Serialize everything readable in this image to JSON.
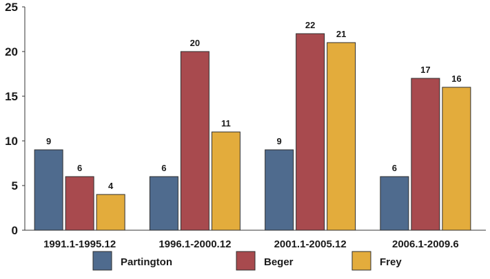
{
  "chart_data": {
    "type": "bar",
    "title": "",
    "xlabel": "",
    "ylabel": "",
    "categories": [
      "1991.1-1995.12",
      "1996.1-2000.12",
      "2001.1-2005.12",
      "2006.1-2009.6"
    ],
    "series": [
      {
        "name": "Partington",
        "values": [
          9,
          6,
          9,
          6
        ],
        "color": "#4f6b8e"
      },
      {
        "name": "Beger",
        "values": [
          6,
          20,
          22,
          17
        ],
        "color": "#a84a4e"
      },
      {
        "name": "Frey",
        "values": [
          4,
          11,
          21,
          16
        ],
        "color": "#e3ac3c"
      }
    ],
    "ylim": [
      0,
      25
    ],
    "yticks": [
      0,
      5,
      10,
      15,
      20,
      25
    ],
    "grid": false,
    "legend_position": "bottom",
    "data_labels": true
  }
}
